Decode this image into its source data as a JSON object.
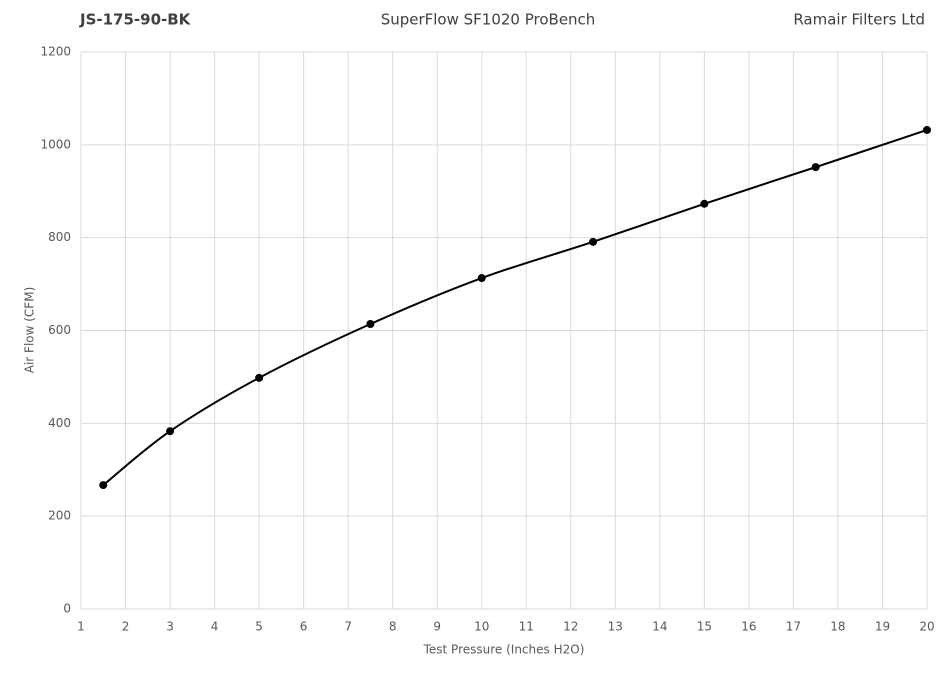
{
  "chart_data": {
    "type": "line",
    "title": "SuperFlow SF1020 ProBench",
    "annotations": [
      "JS-175-90-BK",
      "Ramair Filters Ltd"
    ],
    "x_label": "Test Pressure (Inches H2O)",
    "y_label": "Air Flow (CFM)",
    "x": [
      1.5,
      3,
      5,
      7.5,
      10,
      12.5,
      15,
      17.5,
      20
    ],
    "series": [
      {
        "color": "#000000",
        "values": [
          267,
          383,
          498,
          614,
          713,
          791,
          873,
          952,
          1032
        ]
      }
    ],
    "xlim": [
      1,
      20
    ],
    "xticks": [
      1,
      2,
      3,
      4,
      5,
      6,
      7,
      8,
      9,
      10,
      11,
      12,
      13,
      14,
      15,
      16,
      17,
      18,
      19,
      20
    ],
    "ylim": [
      0,
      1200
    ],
    "yticks": [
      0,
      200,
      400,
      600,
      800,
      1000,
      1200
    ],
    "grid": true,
    "smooth": true
  }
}
